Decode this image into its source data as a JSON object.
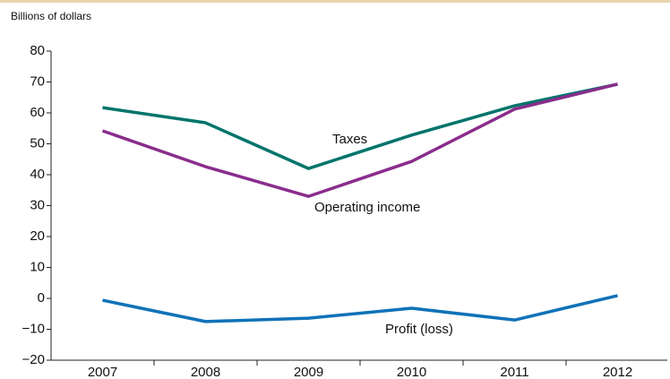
{
  "chart_data": {
    "type": "line",
    "y_label": "Billions of dollars",
    "categories": [
      "2007",
      "2008",
      "2009",
      "2010",
      "2011",
      "2012"
    ],
    "series": [
      {
        "name": "Taxes",
        "color": "#00746b",
        "values": [
          61.7,
          56.8,
          42,
          52.8,
          62.3,
          69.3
        ]
      },
      {
        "name": "Operating income",
        "color": "#8a2d8c",
        "values": [
          54.2,
          42.6,
          33,
          44.3,
          61.2,
          69.3
        ]
      },
      {
        "name": "Profit (loss)",
        "color": "#1072b8",
        "values": [
          -0.6,
          -7.5,
          -6.4,
          -3.2,
          -7,
          0.9
        ]
      }
    ],
    "ylim": [
      -20,
      80
    ],
    "yticks": [
      {
        "value": -20,
        "label": "−20"
      },
      {
        "value": -10,
        "label": "−10"
      },
      0,
      10,
      20,
      30,
      40,
      50,
      60,
      70,
      80
    ]
  }
}
